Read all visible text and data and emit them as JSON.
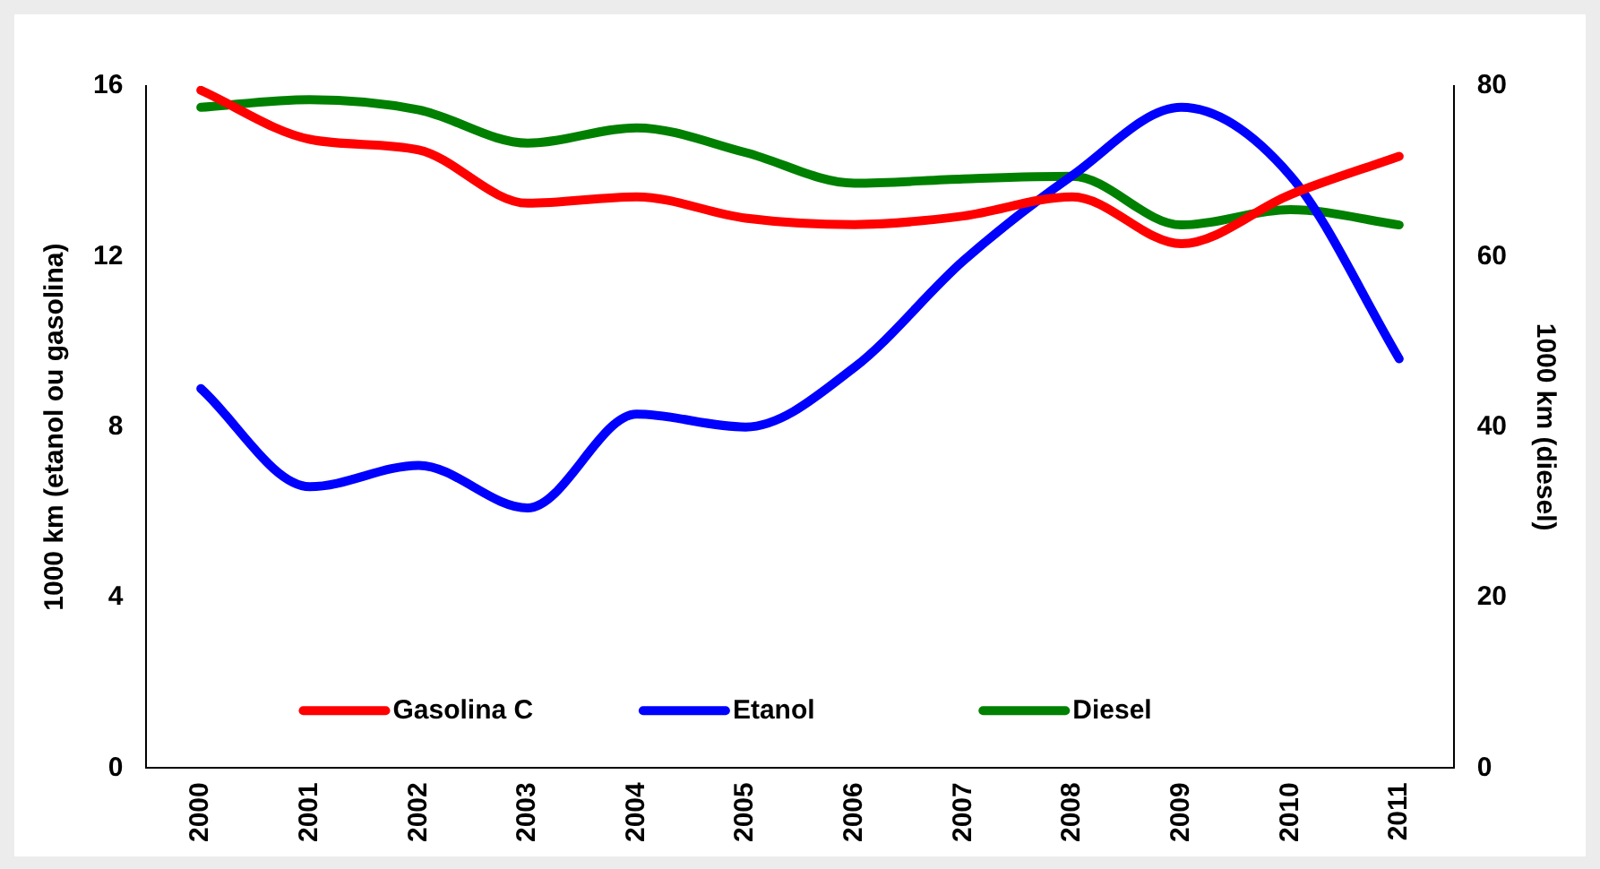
{
  "chart_data": {
    "type": "line",
    "ylabel": "1000 km (etanol ou gasolina)",
    "y2label": "1000 km (diesel)",
    "categories": [
      "2000",
      "2001",
      "2002",
      "2003",
      "2004",
      "2005",
      "2006",
      "2007",
      "2008",
      "2009",
      "2010",
      "2011"
    ],
    "series": [
      {
        "name": "Gasolina C",
        "color": "#ff0000",
        "values": [
          15.9,
          14.75,
          14.5,
          13.25,
          13.4,
          12.9,
          12.75,
          12.95,
          13.4,
          12.3,
          13.45,
          14.35
        ]
      },
      {
        "name": "Etanol",
        "color": "#0000ff",
        "values": [
          8.9,
          6.6,
          7.1,
          6.1,
          8.3,
          8.0,
          9.4,
          11.9,
          13.9,
          15.5,
          13.9,
          9.6
        ]
      },
      {
        "name": "Diesel",
        "color": "#008000",
        "axis": "y2",
        "values": [
          77.5,
          78.4,
          77.2,
          73.3,
          75.1,
          72.2,
          68.6,
          69.1,
          69.4,
          63.7,
          65.5,
          63.7
        ]
      }
    ],
    "ylim": [
      0,
      16
    ],
    "yticks": [
      0,
      4,
      8,
      12,
      16
    ],
    "y2lim": [
      0,
      80
    ],
    "y2ticks": [
      0,
      20,
      40,
      60,
      80
    ],
    "grid": false,
    "legend": "bottom",
    "marker": "none",
    "line_style": "solid"
  }
}
